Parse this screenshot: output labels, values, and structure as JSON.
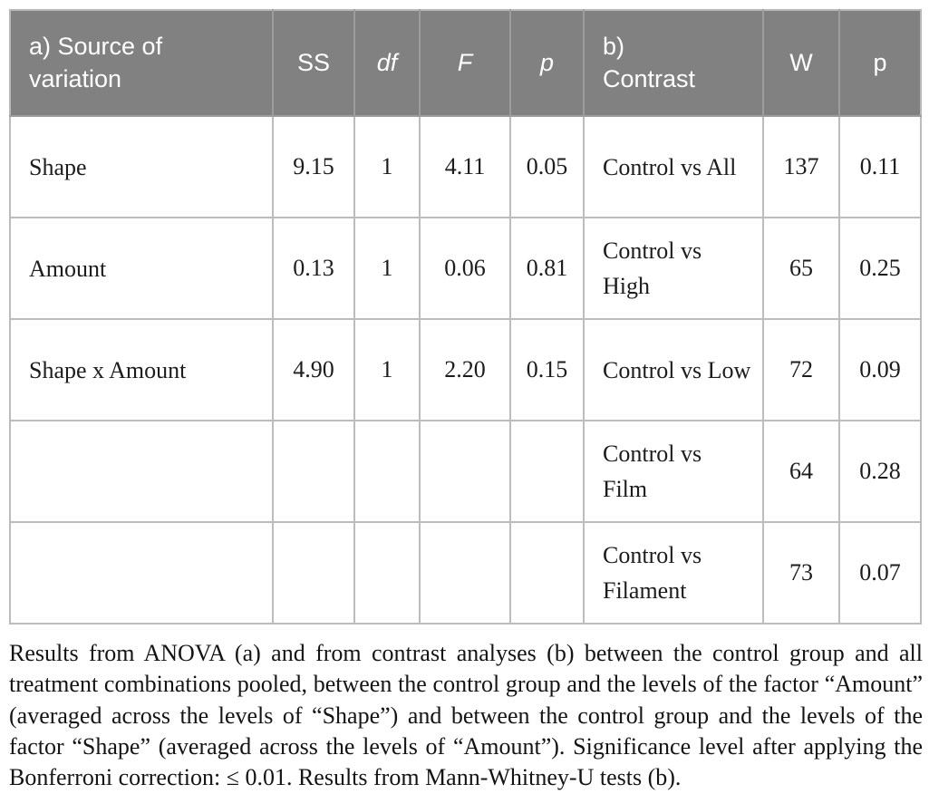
{
  "table": {
    "header": {
      "source_label": "a) Source of\nvariation",
      "ss_label": "SS",
      "df_label": "df",
      "f_label": "F",
      "p_a_label": "p",
      "contrast_label": "b)\nContrast",
      "w_label": "W",
      "p_b_label": "p"
    },
    "rows": [
      {
        "source": "Shape",
        "ss": "9.15",
        "df": "1",
        "f": "4.11",
        "p": "0.05",
        "contrast": "Control vs All",
        "w": "137",
        "pb": "0.11"
      },
      {
        "source": "Amount",
        "ss": "0.13",
        "df": "1",
        "f": "0.06",
        "p": "0.81",
        "contrast": "Control vs High",
        "w": "65",
        "pb": "0.25"
      },
      {
        "source": "Shape x Amount",
        "ss": "4.90",
        "df": "1",
        "f": "2.20",
        "p": "0.15",
        "contrast": "Control vs Low",
        "w": "72",
        "pb": "0.09"
      },
      {
        "source": "",
        "ss": "",
        "df": "",
        "f": "",
        "p": "",
        "contrast": "Control vs Film",
        "w": "64",
        "pb": "0.28"
      },
      {
        "source": "",
        "ss": "",
        "df": "",
        "f": "",
        "p": "",
        "contrast": "Control vs Filament",
        "w": "73",
        "pb": "0.07"
      }
    ]
  },
  "caption": "Results from ANOVA (a) and from contrast analyses (b) between the control group and all treatment combinations pooled, between the control group and the levels of the factor “Amount” (averaged across the levels of “Shape”) and between the control group and the levels of the factor “Shape” (averaged across the levels of “Amount”). Significance level after applying the Bonferroni correction: ≤ 0.01. Results from Mann-Whitney-U tests (b).",
  "colors": {
    "header_bg": "#818181",
    "header_text": "#ffffff",
    "body_border": "#bcbcbc",
    "body_text": "#1c1c1c"
  }
}
